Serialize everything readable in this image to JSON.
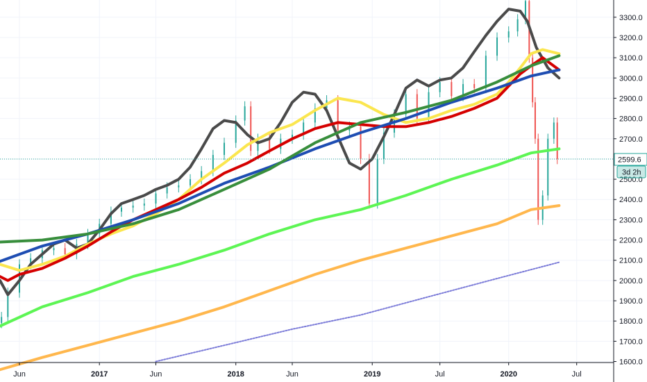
{
  "chart_data": {
    "type": "line",
    "xlim": [
      "2016-04-10",
      "2020-10-08"
    ],
    "ylim": [
      1595,
      3385
    ],
    "y_ticks": [
      "1600.0",
      "1700.0",
      "1800.0",
      "1900.0",
      "2000.0",
      "2100.0",
      "2200.0",
      "2300.0",
      "2400.0",
      "2500.0",
      "2600.0",
      "2700.0",
      "2800.0",
      "2900.0",
      "3000.0",
      "3100.0",
      "3200.0",
      "3300.0"
    ],
    "x_ticks": [
      {
        "label": "Jun",
        "date": "2016-06-01",
        "bold": false
      },
      {
        "label": "2017",
        "date": "2017-01-01",
        "bold": true
      },
      {
        "label": "Jun",
        "date": "2017-06-01",
        "bold": false
      },
      {
        "label": "2018",
        "date": "2018-01-01",
        "bold": true
      },
      {
        "label": "Jun",
        "date": "2018-06-01",
        "bold": false
      },
      {
        "label": "2019",
        "date": "2019-01-01",
        "bold": true
      },
      {
        "label": "Jul",
        "date": "2019-07-01",
        "bold": false
      },
      {
        "label": "2020",
        "date": "2020-01-01",
        "bold": true
      },
      {
        "label": "Jul",
        "date": "2020-07-01",
        "bold": false
      }
    ],
    "grid": true,
    "price_line": {
      "value": 2599.6,
      "label": "2599.6",
      "color": "#26a69a"
    },
    "countdown": "3d 2h",
    "candles": {
      "up_color": "#26a69a",
      "down_color": "#ef5350",
      "x": [
        "2016-04-14",
        "2016-05-01",
        "2016-06-01",
        "2016-07-01",
        "2016-08-01",
        "2016-09-01",
        "2016-10-01",
        "2016-11-01",
        "2016-12-01",
        "2017-01-01",
        "2017-02-01",
        "2017-03-01",
        "2017-04-01",
        "2017-05-01",
        "2017-06-01",
        "2017-07-01",
        "2017-08-01",
        "2017-09-01",
        "2017-10-01",
        "2017-11-01",
        "2017-12-01",
        "2018-01-01",
        "2018-01-25",
        "2018-02-10",
        "2018-03-01",
        "2018-04-01",
        "2018-05-01",
        "2018-06-01",
        "2018-07-01",
        "2018-08-01",
        "2018-09-01",
        "2018-10-01",
        "2018-11-01",
        "2018-12-01",
        "2018-12-24",
        "2019-01-15",
        "2019-02-01",
        "2019-03-01",
        "2019-04-01",
        "2019-05-01",
        "2019-06-01",
        "2019-07-01",
        "2019-08-01",
        "2019-09-01",
        "2019-10-01",
        "2019-11-01",
        "2019-12-01",
        "2020-01-01",
        "2020-01-25",
        "2020-02-15",
        "2020-02-25",
        "2020-03-05",
        "2020-03-12",
        "2020-03-20",
        "2020-04-01",
        "2020-04-15",
        "2020-05-01",
        "2020-05-10"
      ],
      "y": [
        1820,
        1940,
        2080,
        2110,
        2150,
        2160,
        2130,
        2180,
        2230,
        2280,
        2340,
        2360,
        2370,
        2380,
        2430,
        2460,
        2470,
        2500,
        2540,
        2620,
        2680,
        2790,
        2860,
        2640,
        2700,
        2650,
        2700,
        2720,
        2780,
        2850,
        2890,
        2740,
        2760,
        2600,
        2380,
        2600,
        2730,
        2820,
        2920,
        2800,
        2930,
        2980,
        2910,
        2970,
        2950,
        3110,
        3200,
        3230,
        3290,
        3380,
        3100,
        2880,
        2700,
        2300,
        2420,
        2700,
        2780,
        2599.6
      ]
    },
    "series": [
      {
        "color": "#4a4a4a",
        "x": [
          "2016-04-10",
          "2016-05-01",
          "2016-06-01",
          "2016-07-01",
          "2016-08-01",
          "2016-09-01",
          "2016-10-01",
          "2016-11-01",
          "2016-12-01",
          "2017-01-01",
          "2017-02-01",
          "2017-03-01",
          "2017-04-01",
          "2017-05-01",
          "2017-06-01",
          "2017-07-01",
          "2017-08-01",
          "2017-09-01",
          "2017-10-01",
          "2017-11-01",
          "2017-12-01",
          "2018-01-01",
          "2018-02-01",
          "2018-03-01",
          "2018-04-01",
          "2018-05-01",
          "2018-06-01",
          "2018-07-01",
          "2018-08-01",
          "2018-09-01",
          "2018-10-01",
          "2018-11-01",
          "2018-12-01",
          "2019-01-01",
          "2019-02-01",
          "2019-03-01",
          "2019-04-01",
          "2019-05-01",
          "2019-06-01",
          "2019-07-01",
          "2019-08-01",
          "2019-09-01",
          "2019-10-01",
          "2019-11-01",
          "2019-12-01",
          "2020-01-01",
          "2020-02-01",
          "2020-02-20",
          "2020-03-15",
          "2020-04-15",
          "2020-05-15"
        ],
        "y": [
          2000,
          1930,
          2000,
          2080,
          2130,
          2180,
          2200,
          2160,
          2180,
          2250,
          2330,
          2380,
          2400,
          2420,
          2450,
          2470,
          2500,
          2560,
          2650,
          2750,
          2790,
          2780,
          2720,
          2680,
          2700,
          2780,
          2880,
          2930,
          2920,
          2840,
          2710,
          2580,
          2550,
          2600,
          2710,
          2820,
          2950,
          2990,
          2960,
          2990,
          3000,
          3050,
          3130,
          3210,
          3280,
          3340,
          3330,
          3280,
          3150,
          3050,
          3000
        ]
      },
      {
        "color": "#fbe64f",
        "x": [
          "2016-04-10",
          "2016-06-01",
          "2016-08-01",
          "2016-10-01",
          "2016-12-01",
          "2017-02-01",
          "2017-04-01",
          "2017-06-01",
          "2017-08-01",
          "2017-10-01",
          "2017-12-01",
          "2018-02-01",
          "2018-04-01",
          "2018-06-01",
          "2018-08-01",
          "2018-10-01",
          "2018-12-01",
          "2019-02-01",
          "2019-04-01",
          "2019-06-01",
          "2019-08-01",
          "2019-10-01",
          "2019-12-01",
          "2020-01-01",
          "2020-02-01",
          "2020-03-01",
          "2020-04-01",
          "2020-05-15"
        ],
        "y": [
          2080,
          2050,
          2080,
          2120,
          2180,
          2230,
          2270,
          2330,
          2400,
          2500,
          2580,
          2670,
          2730,
          2770,
          2840,
          2900,
          2880,
          2820,
          2780,
          2800,
          2840,
          2870,
          2920,
          2980,
          3050,
          3120,
          3140,
          3120
        ]
      },
      {
        "color": "#d50000",
        "x": [
          "2016-04-10",
          "2016-05-01",
          "2016-06-01",
          "2016-08-01",
          "2016-10-01",
          "2016-12-01",
          "2017-02-01",
          "2017-04-01",
          "2017-06-01",
          "2017-08-01",
          "2017-10-01",
          "2017-12-01",
          "2018-02-01",
          "2018-04-01",
          "2018-06-01",
          "2018-08-01",
          "2018-10-01",
          "2018-12-01",
          "2019-02-01",
          "2019-04-01",
          "2019-06-01",
          "2019-08-01",
          "2019-10-01",
          "2019-12-01",
          "2020-01-01",
          "2020-02-01",
          "2020-03-01",
          "2020-04-01",
          "2020-05-15"
        ],
        "y": [
          2020,
          2000,
          2030,
          2060,
          2110,
          2170,
          2240,
          2300,
          2350,
          2400,
          2460,
          2530,
          2580,
          2640,
          2700,
          2750,
          2780,
          2770,
          2760,
          2760,
          2780,
          2810,
          2850,
          2900,
          2960,
          3020,
          3060,
          3100,
          3040
        ]
      },
      {
        "color": "#1e4db2",
        "x": [
          "2016-04-10",
          "2016-08-01",
          "2016-12-01",
          "2017-04-01",
          "2017-08-01",
          "2017-12-01",
          "2018-04-01",
          "2018-08-01",
          "2018-12-01",
          "2019-04-01",
          "2019-08-01",
          "2019-12-01",
          "2020-03-01",
          "2020-05-15"
        ],
        "y": [
          2095,
          2170,
          2230,
          2300,
          2380,
          2480,
          2560,
          2650,
          2730,
          2800,
          2880,
          2950,
          3010,
          3040
        ]
      },
      {
        "color": "#388e3c",
        "x": [
          "2016-04-10",
          "2016-08-01",
          "2016-12-01",
          "2017-04-01",
          "2017-08-01",
          "2017-12-01",
          "2018-04-01",
          "2018-08-01",
          "2018-12-01",
          "2019-04-01",
          "2019-08-01",
          "2019-12-01",
          "2020-03-01",
          "2020-05-15"
        ],
        "y": [
          2190,
          2200,
          2230,
          2280,
          2350,
          2450,
          2550,
          2680,
          2780,
          2830,
          2890,
          2980,
          3060,
          3110
        ]
      },
      {
        "color": "#5df554",
        "x": [
          "2016-04-10",
          "2016-08-01",
          "2016-12-01",
          "2017-04-01",
          "2017-08-01",
          "2017-12-01",
          "2018-04-01",
          "2018-08-01",
          "2018-12-01",
          "2019-04-01",
          "2019-08-01",
          "2019-12-01",
          "2020-03-01",
          "2020-05-15"
        ],
        "y": [
          1775,
          1870,
          1940,
          2020,
          2080,
          2150,
          2230,
          2300,
          2350,
          2420,
          2500,
          2570,
          2630,
          2650
        ]
      },
      {
        "color": "#ffb74d",
        "x": [
          "2016-04-10",
          "2016-08-01",
          "2016-12-01",
          "2017-04-01",
          "2017-08-01",
          "2017-12-01",
          "2018-04-01",
          "2018-08-01",
          "2018-12-01",
          "2019-04-01",
          "2019-08-01",
          "2019-12-01",
          "2020-03-01",
          "2020-05-15"
        ],
        "y": [
          1560,
          1620,
          1680,
          1740,
          1800,
          1870,
          1950,
          2030,
          2100,
          2160,
          2220,
          2280,
          2350,
          2370
        ]
      },
      {
        "color": "#7b7bd8",
        "dotted": true,
        "x": [
          "2017-06-01",
          "2017-12-01",
          "2018-06-01",
          "2018-12-01",
          "2019-06-01",
          "2019-12-01",
          "2020-05-15"
        ],
        "y": [
          1600,
          1680,
          1760,
          1830,
          1920,
          2010,
          2090
        ]
      }
    ]
  }
}
